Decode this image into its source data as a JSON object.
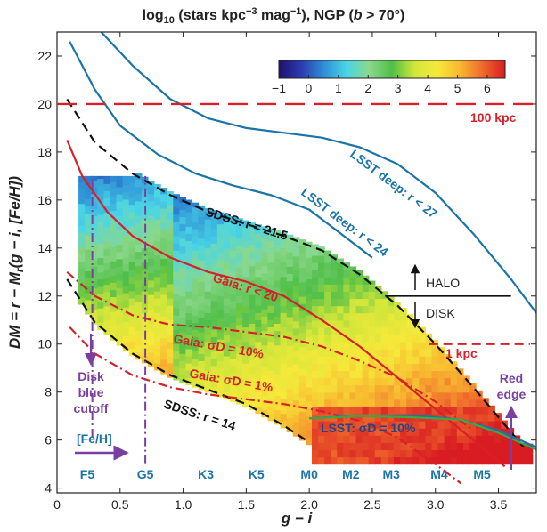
{
  "chart_data": {
    "type": "heatmap",
    "title": "log",
    "title_sub": "10",
    "title_rest_a": " (stars kpc",
    "title_sup": "−3",
    "title_rest_b": " mag",
    "title_sup2": "−1",
    "title_rest_c": "), NGP (",
    "title_b": "b",
    "title_rest_d": " > 70°)",
    "xlabel": "g − i",
    "ylabel": "DM = r − M",
    "ylabel_sub": "r",
    "ylabel_rest": "(g − i, [Fe/H])",
    "xlim": [
      0,
      3.8
    ],
    "ylim": [
      3.8,
      23
    ],
    "xticks": [
      "0",
      "0.5",
      "1.0",
      "1.5",
      "2.0",
      "2.5",
      "3.0",
      "3.5"
    ],
    "xtick_values": [
      0,
      0.5,
      1.0,
      1.5,
      2.0,
      2.5,
      3.0,
      3.5
    ],
    "yticks": [
      "4",
      "6",
      "8",
      "10",
      "12",
      "14",
      "16",
      "18",
      "20",
      "22"
    ],
    "ytick_values": [
      4,
      6,
      8,
      10,
      12,
      14,
      16,
      18,
      20,
      22
    ],
    "colorbar": {
      "min": -1,
      "max": 6.6,
      "ticks": [
        "−1",
        "0",
        "1",
        "2",
        "3",
        "4",
        "5",
        "6"
      ],
      "tick_values": [
        -1,
        0,
        1,
        2,
        3,
        4,
        5,
        6
      ],
      "colors": [
        "#20106e",
        "#2a3cb0",
        "#2e8fd6",
        "#4ad6e6",
        "#8cd88a",
        "#4fbf48",
        "#d2e63a",
        "#f6e93a",
        "#f8b830",
        "#ef6a2c",
        "#d81c22"
      ]
    },
    "lines": [
      {
        "name": "LSST deep: r < 27",
        "style": "solid",
        "color": "#1a74a8",
        "x": [
          0.35,
          0.6,
          0.9,
          1.2,
          1.5,
          1.8,
          2.1,
          2.4,
          2.7,
          3.0,
          3.3,
          3.6,
          3.8
        ],
        "y": [
          23,
          21.6,
          20.2,
          19.4,
          19.0,
          18.8,
          18.6,
          18.2,
          17.5,
          16.3,
          14.6,
          12.7,
          11.3
        ]
      },
      {
        "name": "LSST deep: r < 24",
        "style": "solid",
        "color": "#1a74a8",
        "x": [
          0.1,
          0.3,
          0.5,
          0.8,
          1.1,
          1.4,
          1.7,
          2.0,
          2.3,
          2.5
        ],
        "y": [
          22.6,
          20.6,
          19.1,
          17.9,
          17.1,
          16.6,
          16.2,
          15.6,
          14.4,
          13.6
        ]
      },
      {
        "name": "SDSS: r = 21.5",
        "style": "dashed",
        "color": "#111111",
        "x": [
          0.08,
          0.3,
          0.6,
          0.9,
          1.2,
          1.5,
          1.8,
          2.1,
          2.4,
          2.7,
          3.0,
          3.3,
          3.7
        ],
        "y": [
          20.2,
          18.4,
          17.1,
          16.2,
          15.5,
          15.0,
          14.5,
          13.9,
          12.9,
          11.6,
          10.0,
          8.2,
          5.7
        ]
      },
      {
        "name": "SDSS: r = 14",
        "style": "dashed",
        "color": "#111111",
        "x": [
          0.08,
          0.3,
          0.6,
          0.9,
          1.2,
          1.5,
          1.8,
          2.0
        ],
        "y": [
          12.7,
          10.9,
          9.6,
          8.7,
          8.1,
          7.5,
          6.6,
          5.9
        ]
      },
      {
        "name": "Gaia: r < 20",
        "style": "solid",
        "color": "#d8202a",
        "x": [
          0.08,
          0.2,
          0.4,
          0.6,
          0.9,
          1.2,
          1.5,
          1.8,
          2.1,
          2.4,
          2.7,
          3.0,
          3.3,
          3.55
        ],
        "y": [
          18.5,
          17.0,
          15.5,
          14.5,
          13.6,
          13.0,
          12.6,
          12.0,
          11.0,
          9.9,
          8.6,
          7.3,
          6.0,
          4.9
        ]
      },
      {
        "name": "Gaia: σD = 10%",
        "style": "dashdot",
        "color": "#d8202a",
        "x": [
          0.08,
          0.3,
          0.6,
          0.9,
          1.2,
          1.5,
          1.8,
          2.1,
          2.4,
          2.7,
          3.0,
          3.3
        ],
        "y": [
          13.0,
          12.0,
          11.2,
          10.8,
          10.7,
          10.5,
          10.3,
          9.9,
          9.3,
          8.6,
          7.6,
          6.4
        ]
      },
      {
        "name": "Gaia: σD = 1%",
        "style": "dashdot",
        "color": "#d8202a",
        "x": [
          0.1,
          0.3,
          0.6,
          0.9,
          1.2,
          1.5,
          1.8,
          2.1,
          2.4,
          2.7,
          3.0,
          3.2
        ],
        "y": [
          10.7,
          9.6,
          8.7,
          8.2,
          7.9,
          7.7,
          7.5,
          7.2,
          6.8,
          6.1,
          5.0,
          4.2
        ]
      },
      {
        "name": "LSST: σD = 10%",
        "style": "solid",
        "color": "#1a74a8",
        "x": [
          2.0,
          2.3,
          2.6,
          2.9,
          3.2,
          3.5,
          3.8
        ],
        "y": [
          6.9,
          7.0,
          7.0,
          7.0,
          6.85,
          6.4,
          5.7
        ]
      },
      {
        "name": "LSST green",
        "style": "solid",
        "color": "#3aa844",
        "x": [
          2.0,
          2.4,
          2.8,
          3.2,
          3.5,
          3.8
        ],
        "y": [
          6.9,
          7.0,
          6.95,
          6.85,
          6.3,
          5.6
        ]
      }
    ],
    "annotations": {
      "kpc100": "100 kpc",
      "kpc1": "1 kpc",
      "halo": "HALO",
      "disk": "DISK",
      "disk_blue_cutoff": [
        "Disk",
        "blue",
        "cutoff"
      ],
      "red_edge": [
        "Red",
        "edge"
      ],
      "feh": "[Fe/H]",
      "lsst_deep_27": "LSST deep: r < 27",
      "lsst_deep_24": "LSST deep: r < 24",
      "sdss_215": "SDSS: r = 21.5",
      "sdss_14": "SDSS: r = 14",
      "gaia_20": "Gaia: r < 20",
      "gaia_sd10": "Gaia: σD = 10%",
      "gaia_sd1": "Gaia: σD = 1%",
      "lsst_sd10": "LSST: σD = 10%"
    },
    "spectral_types": [
      {
        "label": "F5",
        "x": 0.24
      },
      {
        "label": "G5",
        "x": 0.7
      },
      {
        "label": "K3",
        "x": 1.18
      },
      {
        "label": "K5",
        "x": 1.58
      },
      {
        "label": "M0",
        "x": 2.0
      },
      {
        "label": "M2",
        "x": 2.33
      },
      {
        "label": "M3",
        "x": 2.65
      },
      {
        "label": "M4",
        "x": 3.03
      },
      {
        "label": "M5",
        "x": 3.37
      }
    ],
    "hlines": [
      {
        "name": "100 kpc",
        "y": 20.0,
        "x": [
          0.0,
          3.8
        ],
        "style": "longdash",
        "color": "#d8202a"
      },
      {
        "name": "1 kpc",
        "y": 10.0,
        "x": [
          2.95,
          3.75
        ],
        "style": "dashed",
        "color": "#d8202a"
      },
      {
        "name": "halo-disk",
        "y": 12.0,
        "x": [
          2.6,
          3.6
        ],
        "style": "solid",
        "color": "#111111"
      }
    ],
    "vlines": [
      {
        "name": "disk-blue-cutoff",
        "x": 0.28,
        "y": [
          6.1,
          17.0
        ],
        "style": "dashdot",
        "color": "#7a3fa0"
      },
      {
        "name": "G5",
        "x": 0.7,
        "y": [
          5.0,
          17.0
        ],
        "style": "dashdot",
        "color": "#7a3fa0"
      }
    ]
  }
}
